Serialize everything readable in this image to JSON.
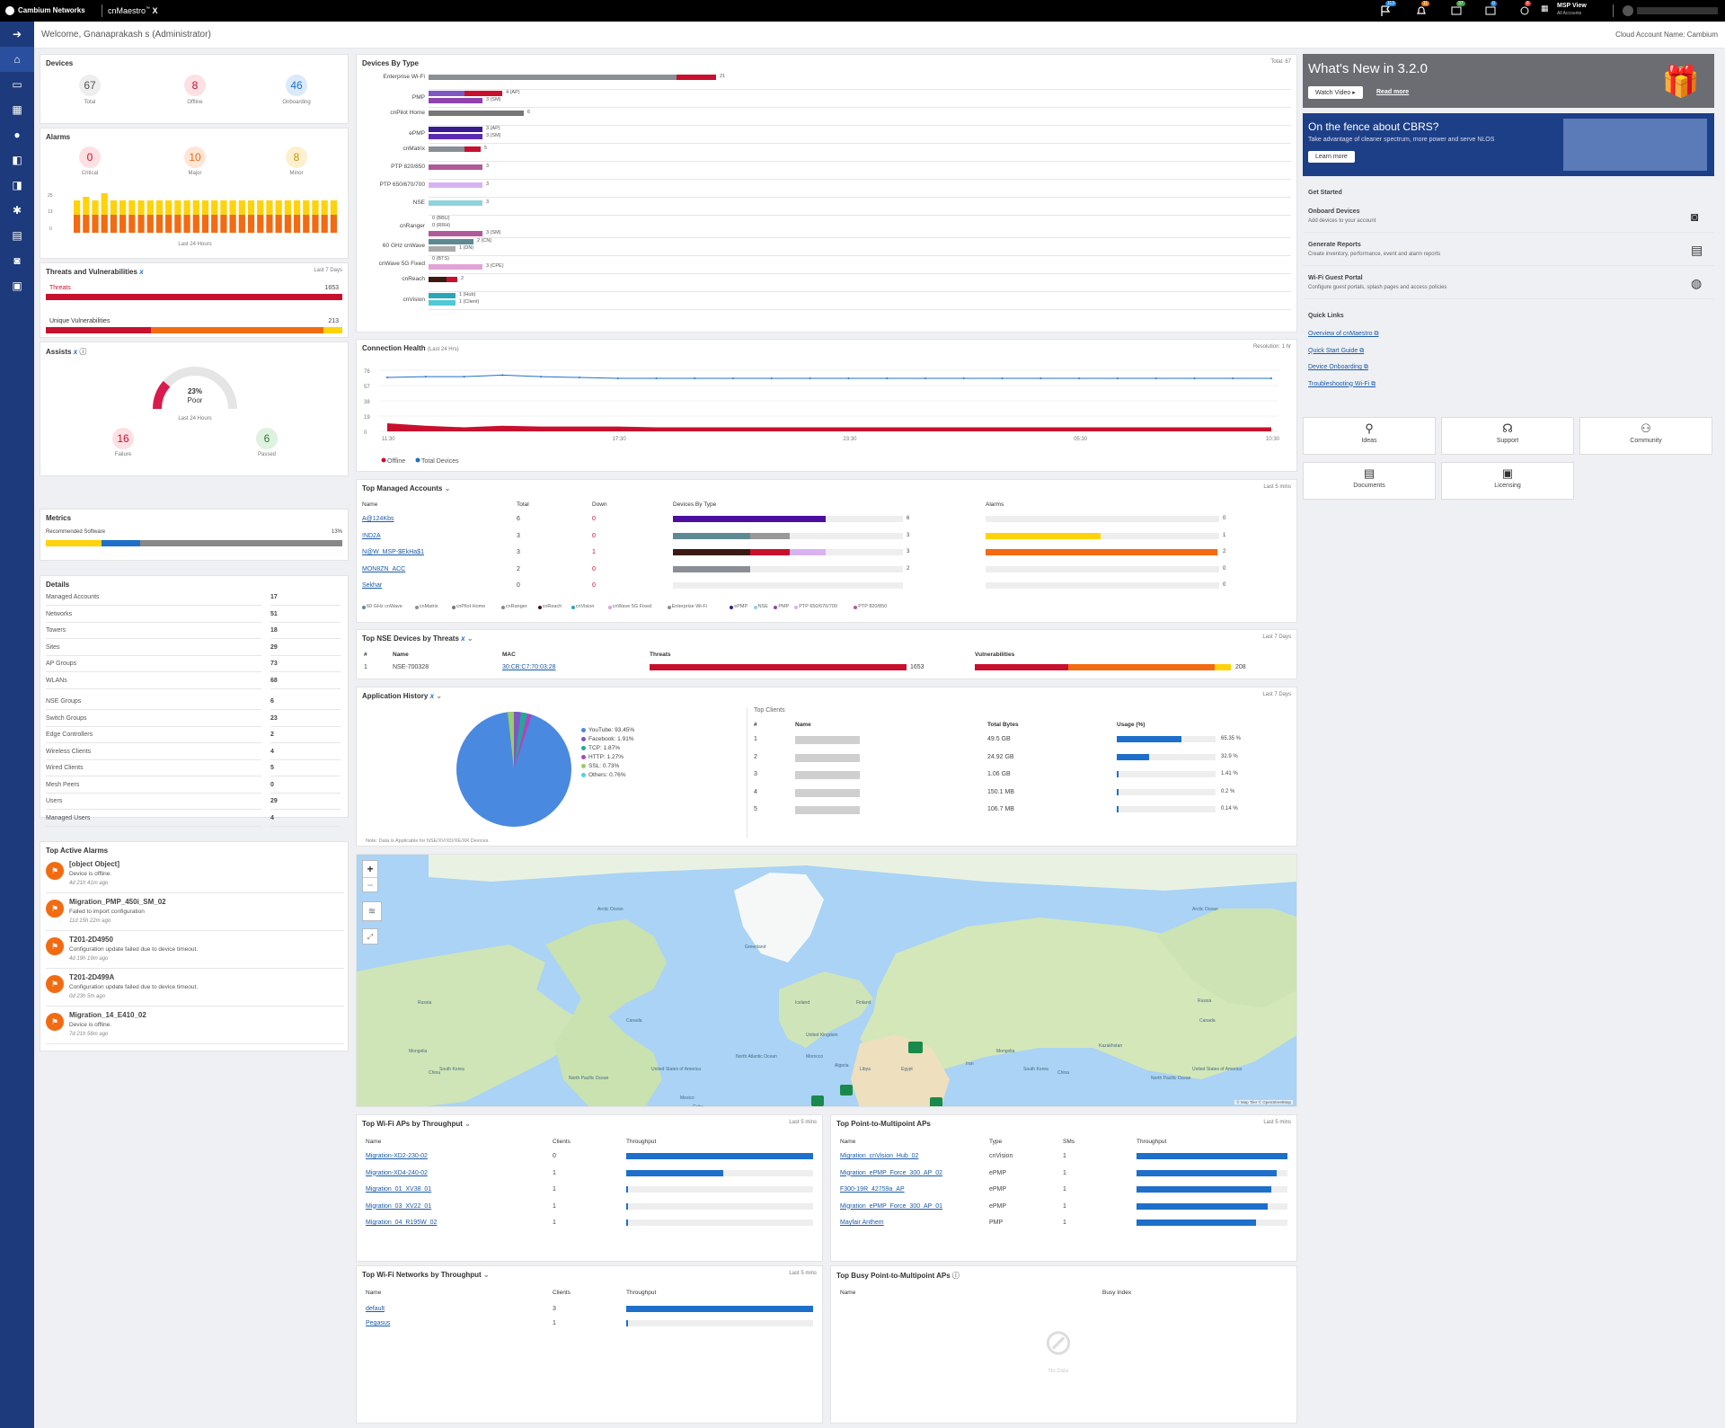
{
  "brand": {
    "company": "Cambium Networks",
    "product": "cnMaestro",
    "product_sup": "™",
    "product_x": "X"
  },
  "topbar": {
    "badges": [
      "113",
      "11",
      "37",
      "0",
      "8"
    ],
    "msp": "MSP View",
    "msp_sub": "All Accounts"
  },
  "welcome": {
    "text": "Welcome, Gnanaprakash s  (Administrator)",
    "account": "Cloud Account Name: Cambium"
  },
  "devices": {
    "title": "Devices",
    "total": "67",
    "total_label": "Total",
    "offline": "8",
    "offline_label": "Offline",
    "onboarding": "46",
    "onboarding_label": "Onboarding"
  },
  "alarms": {
    "title": "Alarms",
    "critical": "0",
    "critical_label": "Critical",
    "major": "10",
    "major_label": "Major",
    "minor": "8",
    "minor_label": "Minor",
    "y_ticks": [
      "25",
      "13",
      "0"
    ],
    "footer": "Last 24 Hours",
    "bars_major": [
      10,
      10,
      10,
      10,
      10,
      10,
      10,
      10,
      10,
      10,
      10,
      10,
      10,
      10,
      10,
      10,
      10,
      10,
      10,
      10,
      10,
      10,
      10,
      10,
      10,
      10,
      10,
      10,
      10
    ],
    "bars_minor": [
      8,
      10,
      8,
      12,
      8,
      8,
      8,
      8,
      8,
      8,
      8,
      8,
      8,
      8,
      8,
      8,
      8,
      8,
      8,
      8,
      8,
      8,
      8,
      8,
      8,
      8,
      8,
      8,
      8
    ]
  },
  "threats": {
    "title": "Threats and Vulnerabilities",
    "range": "Last 7 Days",
    "threats_label": "Threats",
    "threats_value": "1653",
    "vuln_label": "Unique Vulnerabilities",
    "vuln_value": "213"
  },
  "assists": {
    "title": "Assists",
    "percent": "23%",
    "status": "Poor",
    "footer": "Last 24 Hours",
    "failure": "16",
    "failure_label": "Failure",
    "passed": "6",
    "passed_label": "Passed",
    "gauge_fraction": 0.23
  },
  "metrics": {
    "title": "Metrics",
    "label": "Recommended Software",
    "value": "13%"
  },
  "details": {
    "title": "Details",
    "rows": [
      [
        "Managed Accounts",
        "17"
      ],
      [
        "Networks",
        "51"
      ],
      [
        "Towers",
        "18"
      ],
      [
        "Sites",
        "29"
      ],
      [
        "AP Groups",
        "73"
      ],
      [
        "WLANs",
        "68"
      ],
      [
        "NSE Groups",
        "6"
      ],
      [
        "Switch Groups",
        "23"
      ],
      [
        "Edge Controllers",
        "2"
      ],
      [
        "Wireless Clients",
        "4"
      ],
      [
        "Wired Clients",
        "5"
      ],
      [
        "Mesh Peers",
        "0"
      ],
      [
        "Users",
        "29"
      ],
      [
        "Managed Users",
        "4"
      ]
    ]
  },
  "active_alarms": {
    "title": "Top Active Alarms",
    "items": [
      {
        "name": "[object Object]",
        "msg": "Device is offline.",
        "time": "4d 21h 41m ago"
      },
      {
        "name": "Migration_PMP_450i_SM_02",
        "msg": "Failed to import configuration",
        "time": "11d 15h 22m ago"
      },
      {
        "name": "T201-2D4950",
        "msg": "Configuration update failed due to device timeout.",
        "time": "4d 19h 19m ago"
      },
      {
        "name": "T201-2D499A",
        "msg": "Configuration update failed due to device timeout.",
        "time": "0d 23h 5m ago"
      },
      {
        "name": "Migration_14_E410_02",
        "msg": "Device is offline.",
        "time": "7d 21h 56m ago"
      }
    ]
  },
  "devices_by_type": {
    "title": "Devices By Type",
    "total": "Total: 67",
    "rows": [
      {
        "name": "Enterprise Wi-Fi",
        "labels": [
          "21"
        ]
      },
      {
        "name": "PMP",
        "labels": [
          "4 (AP)",
          "3 (SM)"
        ]
      },
      {
        "name": "cnPilot Home",
        "labels": [
          "6"
        ]
      },
      {
        "name": "ePMP",
        "labels": [
          "3 (AP)",
          "3 (SM)"
        ]
      },
      {
        "name": "cnMatrix",
        "labels": [
          "5"
        ]
      },
      {
        "name": "PTP 820/850",
        "labels": [
          "3"
        ]
      },
      {
        "name": "PTP 650/670/700",
        "labels": [
          "3"
        ]
      },
      {
        "name": "NSE",
        "labels": [
          "3"
        ]
      },
      {
        "name": "cnRanger",
        "labels": [
          "0 (BBU)",
          "0 (RRH)",
          "3 (SM)"
        ]
      },
      {
        "name": "60 GHz cnWave",
        "labels": [
          "2 (CN)",
          "1 (DN)"
        ]
      },
      {
        "name": "cnWave 5G Fixed",
        "labels": [
          "0 (BTS)",
          "3 (CPE)"
        ]
      },
      {
        "name": "cnReach",
        "labels": [
          "2"
        ]
      },
      {
        "name": "cnVision",
        "labels": [
          "1 (Hub)",
          "1 (Client)"
        ]
      }
    ]
  },
  "connection_health": {
    "title": "Connection Health",
    "sub": "(Last 24 Hrs)",
    "resolution": "Resolution: 1 hr",
    "y_ticks": [
      "76",
      "57",
      "38",
      "19",
      "0"
    ],
    "x_ticks": [
      "11:30",
      "17:30",
      "23:30",
      "05:30",
      "10:30"
    ],
    "legend_offline": "Offline",
    "legend_total": "Total Devices"
  },
  "chart_data": {
    "type": "area",
    "title": "Connection Health",
    "x": [
      "11:30",
      "12:30",
      "13:30",
      "14:30",
      "15:30",
      "16:30",
      "17:30",
      "18:30",
      "19:30",
      "20:30",
      "21:30",
      "22:30",
      "23:30",
      "00:30",
      "01:30",
      "02:30",
      "03:30",
      "04:30",
      "05:30",
      "06:30",
      "07:30",
      "08:30",
      "09:30",
      "10:30"
    ],
    "series": [
      {
        "name": "Total Devices",
        "values": [
          67,
          68,
          68,
          70,
          68,
          67,
          66,
          66,
          66,
          66,
          66,
          66,
          66,
          66,
          66,
          66,
          66,
          66,
          66,
          66,
          66,
          66,
          66,
          66
        ]
      },
      {
        "name": "Offline",
        "values": [
          10,
          7,
          5,
          7,
          6,
          6,
          6,
          5,
          5,
          5,
          5,
          5,
          5,
          5,
          5,
          5,
          5,
          5,
          5,
          5,
          5,
          5,
          5,
          5
        ]
      }
    ],
    "ylim": [
      0,
      76
    ]
  },
  "top_accounts": {
    "title": "Top Managed Accounts",
    "range": "Last 5 mins",
    "headers": [
      "Name",
      "Total",
      "Down",
      "Devices By Type",
      "Alarms"
    ],
    "rows": [
      {
        "name": "A@124Kbs",
        "total": "6",
        "down": "0",
        "alarms": "0"
      },
      {
        "name": "!ND2A",
        "total": "3",
        "down": "0",
        "alarms": "1"
      },
      {
        "name": "N@W_MSP-$EkHa$1",
        "total": "3",
        "down": "1",
        "alarms": "2"
      },
      {
        "name": "MON8ZN_ACC",
        "total": "2",
        "down": "0",
        "alarms": "0"
      },
      {
        "name": "Sekhar",
        "total": "0",
        "down": "0",
        "alarms": "0"
      }
    ],
    "device_values": [
      "6",
      "3",
      "3",
      "2",
      ""
    ],
    "legend": [
      "60 GHz cnWave",
      "cnMatrix",
      "cnPilot Home",
      "cnRanger",
      "cnReach",
      "cnVision",
      "cnWave 5G Fixed",
      "Enterprise Wi-Fi",
      "ePMP",
      "NSE",
      "PMP",
      "PTP 650/670/700",
      "PTP 820/850"
    ]
  },
  "nse_threats": {
    "title": "Top NSE Devices by Threats",
    "range": "Last 7 Days",
    "headers": [
      "#",
      "Name",
      "MAC",
      "Threats",
      "Vulnerabilities"
    ],
    "row": {
      "idx": "1",
      "name": "NSE-700328",
      "mac": "30:CB:C7:70:03:28",
      "threats": "1653",
      "vulns": "208"
    }
  },
  "app_history": {
    "title": "Application History",
    "range": "Last 7 Days",
    "legend": [
      "YouTube: 93.45%",
      "Facebook: 1.91%",
      "TCP: 1.87%",
      "HTTP: 1.27%",
      "SSL: 0.73%",
      "Others: 0.76%"
    ],
    "note": "Note: Data is Applicable for NSE/XV/XD/XE/XR Devices.",
    "top_clients": "Top Clients",
    "headers": [
      "#",
      "Name",
      "Total Bytes",
      "Usage (%)"
    ],
    "rows": [
      {
        "idx": "1",
        "bytes": "49.5 GB",
        "pct": "65.35 %",
        "frac": 0.6535
      },
      {
        "idx": "2",
        "bytes": "24.92 GB",
        "pct": "32.9 %",
        "frac": 0.329
      },
      {
        "idx": "3",
        "bytes": "1.06 GB",
        "pct": "1.41 %",
        "frac": 0.0141
      },
      {
        "idx": "4",
        "bytes": "150.1 MB",
        "pct": "0.2 %",
        "frac": 0.002
      },
      {
        "idx": "5",
        "bytes": "106.7 MB",
        "pct": "0.14 %",
        "frac": 0.0014
      }
    ]
  },
  "map": {
    "zoom_in": "+",
    "zoom_out": "−",
    "labels": [
      "Arctic Ocean",
      "Greenland",
      "Russia",
      "Canada",
      "Iceland",
      "Finland",
      "United Kingdom",
      "Mongolia",
      "China",
      "South Korea",
      "United States of America",
      "North Pacific Ocean",
      "North Atlantic Ocean",
      "Mexico",
      "Cuba",
      "Morocco",
      "Algeria",
      "Libya",
      "Egypt",
      "Iran",
      "Arctic Ocean",
      "Russia",
      "Mongolia",
      "China",
      "South Korea",
      "North Pacific Ocean",
      "United States of America",
      "Canada",
      "Kazakhstan"
    ],
    "credit": "© Map Tiler © OpenStreetMap"
  },
  "wifi_aps": {
    "title": "Top Wi-Fi APs by Throughput",
    "range": "Last 5 mins",
    "headers": [
      "Name",
      "Clients",
      "Throughput"
    ],
    "rows": [
      {
        "name": "Migration-XD2-230-02",
        "clients": "0",
        "frac": 1.0
      },
      {
        "name": "Migration-XD4-240-02",
        "clients": "1",
        "frac": 0.52
      },
      {
        "name": "Migration_01_XV38_01",
        "clients": "1",
        "frac": 0.01
      },
      {
        "name": "Migration_03_XV22_01",
        "clients": "1",
        "frac": 0.01
      },
      {
        "name": "Migration_04_R195W_02",
        "clients": "1",
        "frac": 0.01
      }
    ]
  },
  "pmp_aps": {
    "title": "Top Point-to-Multipoint APs",
    "range": "Last 5 mins",
    "headers": [
      "Name",
      "Type",
      "SMs",
      "Throughput"
    ],
    "rows": [
      {
        "name": "Migration_cnVision_Hub_02",
        "type": "cnVision",
        "sms": "1",
        "frac": 1.0
      },
      {
        "name": "Migration_ePMP_Force_300_AP_02",
        "type": "ePMP",
        "sms": "1",
        "frac": 0.93
      },
      {
        "name": "F300-19R_42759a_AP",
        "type": "ePMP",
        "sms": "1",
        "frac": 0.89
      },
      {
        "name": "Migration_ePMP_Force_300_AP_01",
        "type": "ePMP",
        "sms": "1",
        "frac": 0.87
      },
      {
        "name": "Mayfair Anthem",
        "type": "PMP",
        "sms": "1",
        "frac": 0.79
      }
    ]
  },
  "wifi_nets": {
    "title": "Top Wi-Fi Networks by Throughput",
    "range": "Last 5 mins",
    "headers": [
      "Name",
      "Clients",
      "Throughput"
    ],
    "rows": [
      {
        "name": "default",
        "clients": "3",
        "frac": 1.0
      },
      {
        "name": "Pegasus",
        "clients": "1",
        "frac": 0.01
      }
    ]
  },
  "busy_pmp": {
    "title": "Top Busy Point-to-Multipoint APs",
    "headers": [
      "Name",
      "Busy Index"
    ],
    "empty": "No Data"
  },
  "whatsnew": {
    "title": "What's New in 3.2.0",
    "watch": "Watch Video",
    "read": "Read more"
  },
  "cbrs": {
    "title": "On the fence about CBRS?",
    "sub": "Take advantage of cleaner spectrum, more power and serve NLOS",
    "button": "Learn more"
  },
  "get_started": {
    "title": "Get Started",
    "items": [
      {
        "title": "Onboard Devices",
        "sub": "Add devices to your account"
      },
      {
        "title": "Generate Reports",
        "sub": "Create inventory, performance, event and alarm reports"
      },
      {
        "title": "Wi-Fi Guest Portal",
        "sub": "Configure guest portals, splash pages and access policies"
      }
    ]
  },
  "quick_links": {
    "title": "Quick Links",
    "items": [
      "Overview of cnMaestro",
      "Quick Start Guide",
      "Device Onboarding",
      "Troubleshooting Wi-Fi"
    ]
  },
  "tiles": [
    "Ideas",
    "Support",
    "Community",
    "Documents",
    "Licensing"
  ]
}
